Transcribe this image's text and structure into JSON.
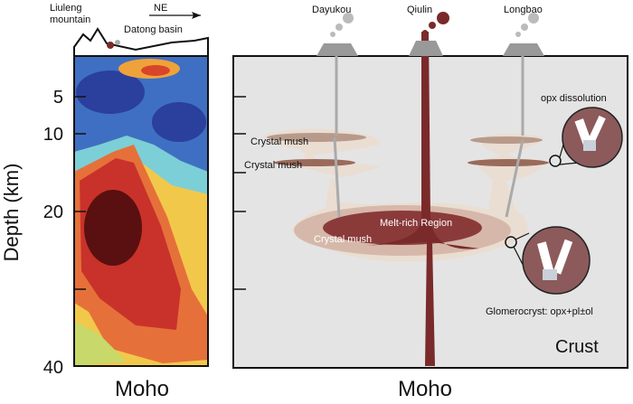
{
  "left_panel": {
    "mountain_lines": [
      "Liuleng",
      "mountain"
    ],
    "direction": "NE",
    "basin": "Datong basin",
    "y_axis": {
      "label": "Depth (km)",
      "ticks": [
        "5",
        "10",
        "20",
        "40"
      ]
    },
    "bottom_label": "Moho"
  },
  "right_panel": {
    "volcanoes": [
      "Dayukou",
      "Qiulin",
      "Longbao"
    ],
    "crystal_mush": [
      "Crystal mush",
      "Crystal mush",
      "Crystal mush"
    ],
    "melt_region": "Melt-rich Region",
    "inset_top": "opx dissolution",
    "inset_bottom": "Glomerocryst: opx+pl±ol",
    "layer": "Crust",
    "bottom_label": "Moho"
  }
}
